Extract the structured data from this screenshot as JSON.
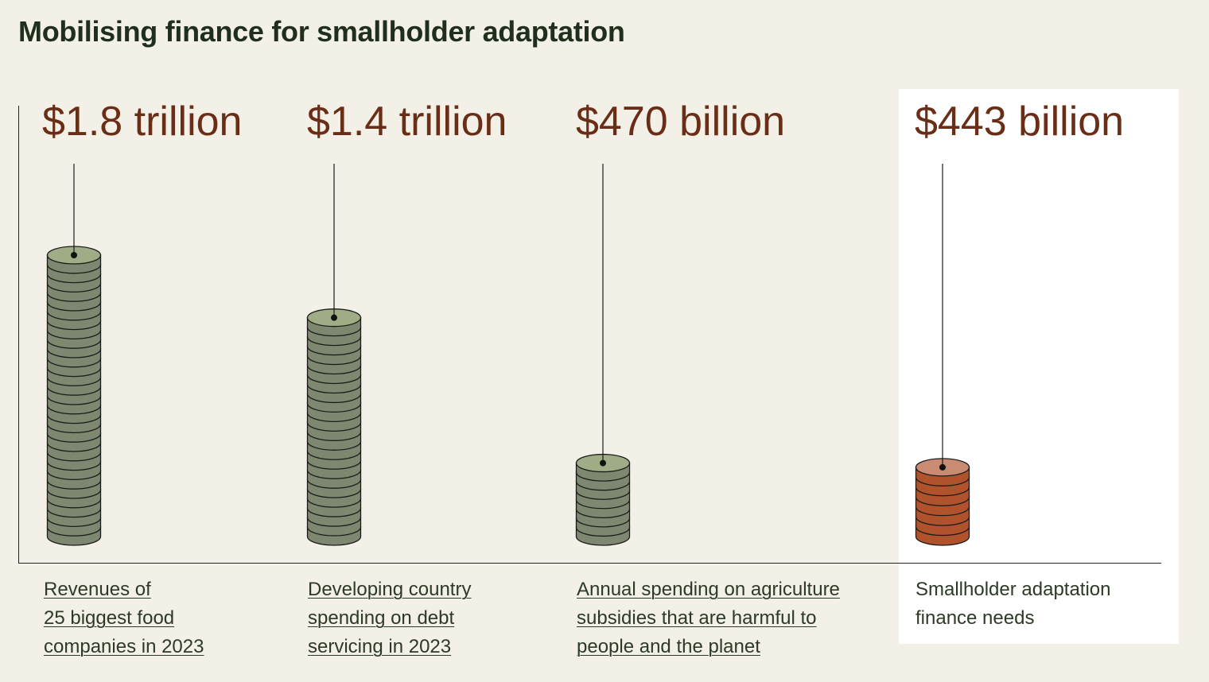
{
  "title": "Mobilising finance for smallholder adaptation",
  "chart_data": {
    "type": "bar",
    "style": "coin stacks",
    "title": "Mobilising finance for smallholder adaptation",
    "unit": "US dollars",
    "categories": [
      "Revenues of 25 biggest food companies in 2023",
      "Developing country spending on debt servicing in 2023",
      "Annual spending on agriculture subsidies that are harmful to people and the planet",
      "Smallholder adaptation finance needs"
    ],
    "values": [
      1800,
      1400,
      470,
      443
    ],
    "value_units": "billion USD",
    "value_labels": [
      "$1.8 trillion",
      "$1.4 trillion",
      "$470 billion",
      "$443 billion"
    ],
    "label_lines": [
      [
        "Revenues of",
        "25 biggest food",
        "companies in 2023"
      ],
      [
        "Developing country ",
        "spending on debt ",
        "servicing in 2023"
      ],
      [
        "Annual spending on agriculture",
        "subsidies that are harmful to",
        "people and the planet"
      ],
      [
        "Smallholder adaptation",
        "finance needs"
      ]
    ],
    "highlighted_index": 3,
    "colors": {
      "coin_fill": "#7e8770",
      "coin_top": "#a0ac86",
      "highlight_fill": "#b0532c",
      "highlight_top": "#c98c73",
      "value_text": "#6a2d16"
    }
  }
}
